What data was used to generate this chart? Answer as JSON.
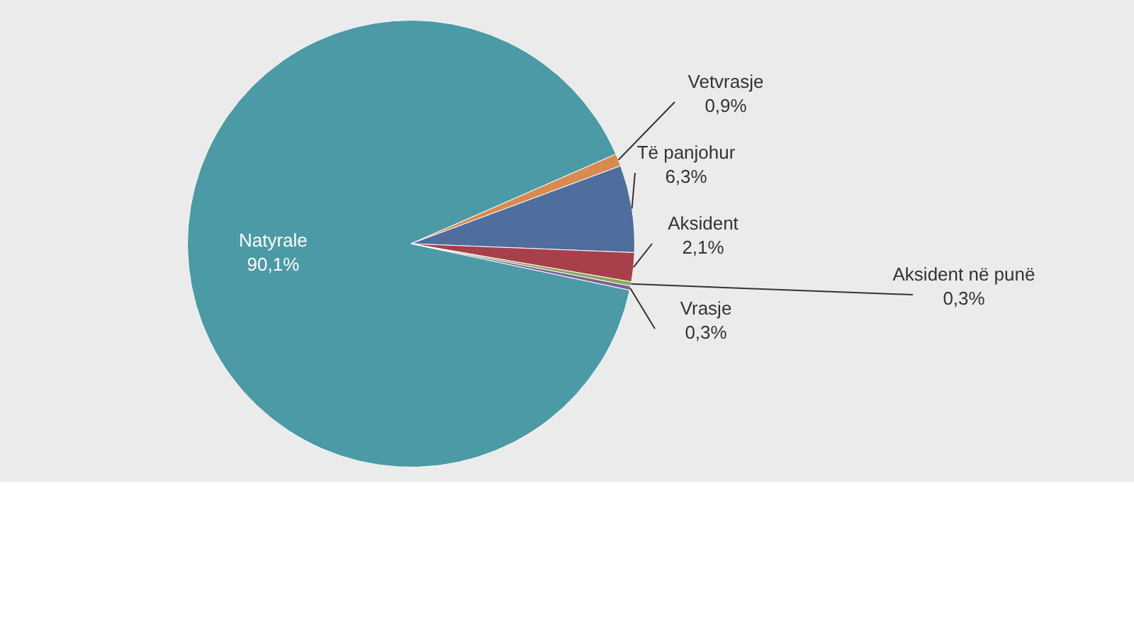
{
  "chart_data": {
    "type": "pie",
    "categories": [
      "Natyrale",
      "Vetvrasje",
      "Të panjohur",
      "Aksident",
      "Aksident në punë",
      "Vrasje"
    ],
    "values": [
      90.1,
      0.9,
      6.3,
      2.1,
      0.3,
      0.3
    ],
    "value_labels": [
      "90,1%",
      "0,9%",
      "6,3%",
      "2,1%",
      "0,3%",
      "0,3%"
    ],
    "colors": [
      "#4b9aa5",
      "#d98a4e",
      "#4f6e9e",
      "#a7404b",
      "#86a857",
      "#7a6298"
    ]
  }
}
